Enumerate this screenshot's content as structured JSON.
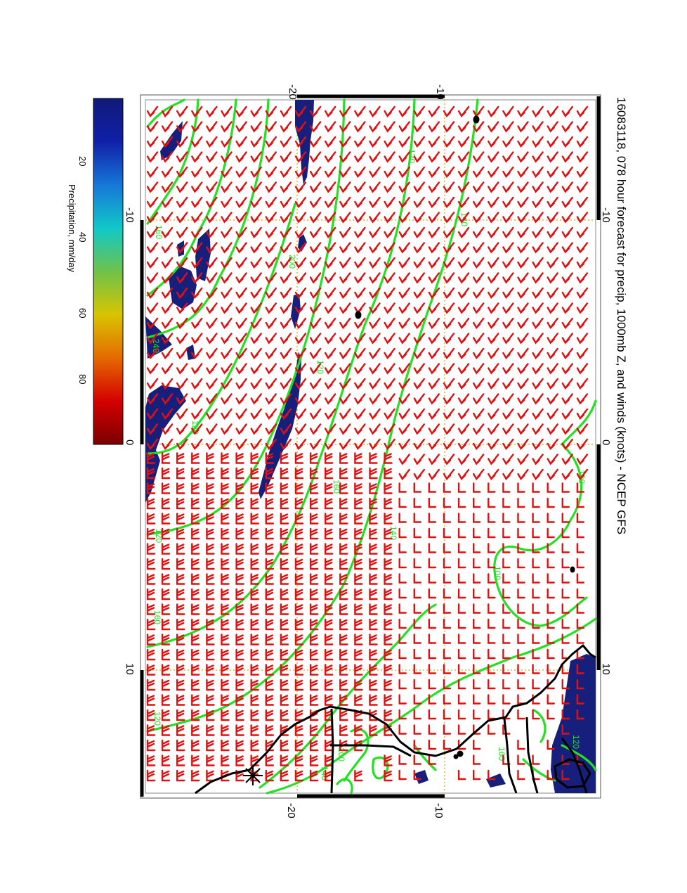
{
  "title": "16083118, 078 hour forecast for precip, 1000mb Z, and winds (knots) - NCEP GFS",
  "colorbar": {
    "label": "Precipitation, mm/day",
    "ticks": [
      "20",
      "40",
      "60",
      "80"
    ],
    "colors": [
      "#7a0000",
      "#d40000",
      "#e46a00",
      "#d8c400",
      "#6fc24a",
      "#11c8c8",
      "#1677d8",
      "#1020a8",
      "#101a78"
    ]
  },
  "axes": {
    "top_ticks": [
      "-20",
      "-10"
    ],
    "bottom_ticks": [
      "-20",
      "-10"
    ],
    "left_ticks": [
      "-10",
      "0",
      "10"
    ],
    "right_ticks": [
      "-10",
      "0",
      "10"
    ]
  },
  "contour_labels": [
    "120",
    "140",
    "120",
    "160",
    "200",
    "240",
    "120",
    "160",
    "140",
    "120",
    "120",
    "160",
    "100",
    "120",
    "100",
    "140",
    "160",
    "120"
  ],
  "colors": {
    "contour": "#22e022",
    "barb": "#e01010",
    "precip": "#16207c",
    "grid": "#d8a400",
    "coast": "#000000",
    "frame": "#000000"
  }
}
